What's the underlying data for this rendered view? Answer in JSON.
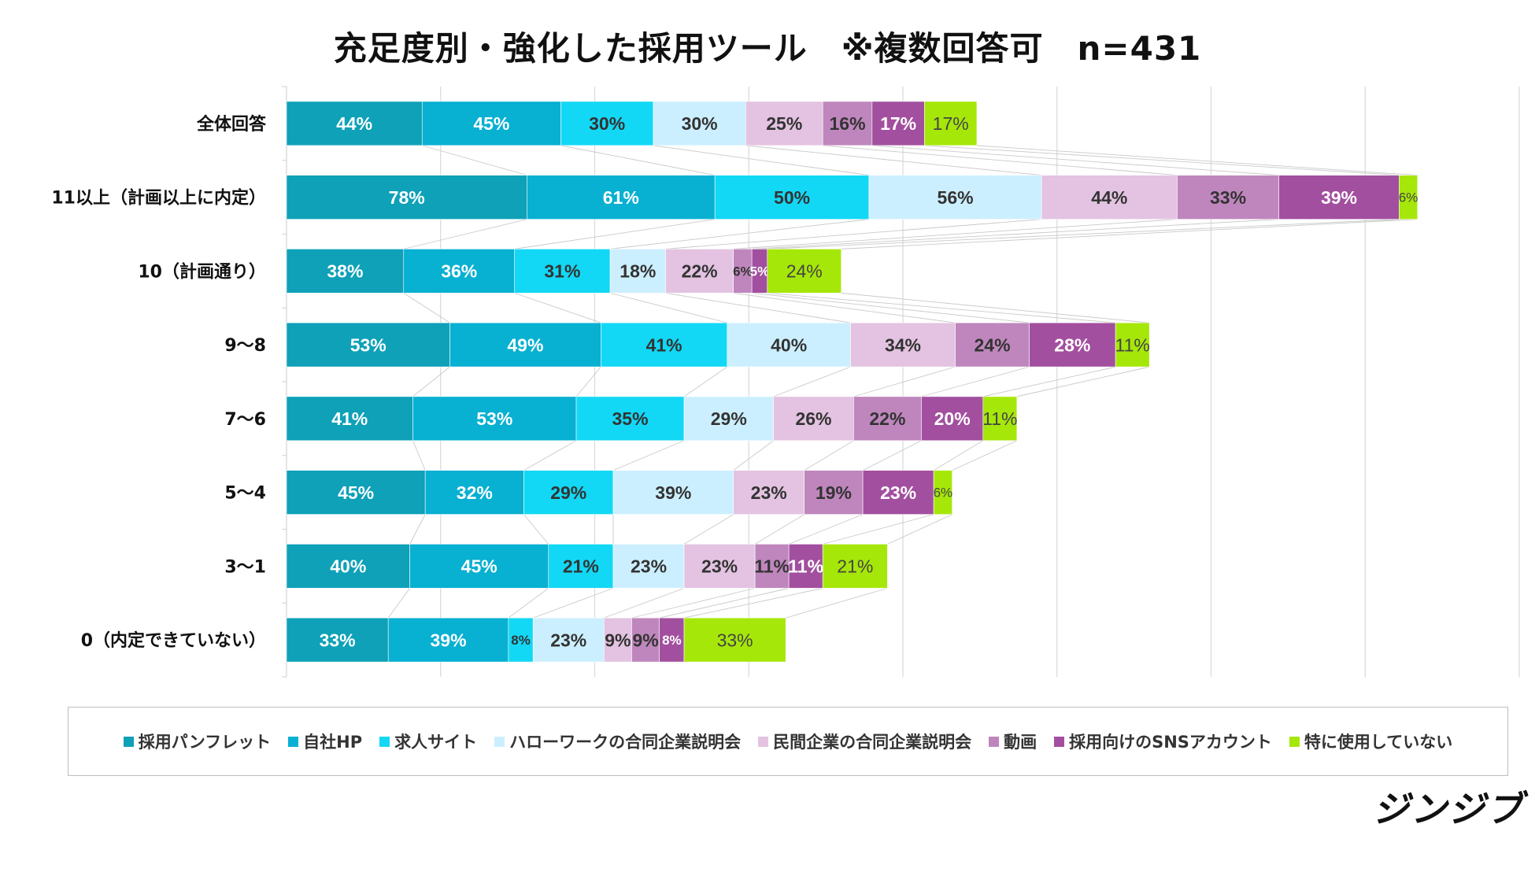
{
  "title": "充足度別・強化した採用ツール　※複数回答可　n=431",
  "brand": "ジンジブ",
  "chart_data": {
    "type": "bar",
    "orientation": "horizontal",
    "stacked": true,
    "title": "充足度別・強化した採用ツール　※複数回答可　n=431",
    "categories": [
      "全体回答",
      "11以上（計画以上に内定）",
      "10（計画通り）",
      "9～8",
      "7～6",
      "5～4",
      "3～1",
      "0（内定できていない）"
    ],
    "series": [
      {
        "name": "採用パンフレット",
        "color": "#0ea1b8",
        "label_color": "#ffffff",
        "values": [
          44,
          78,
          38,
          53,
          41,
          45,
          40,
          33
        ]
      },
      {
        "name": "自社HP",
        "color": "#08b0d2",
        "label_color": "#ffffff",
        "values": [
          45,
          61,
          36,
          49,
          53,
          32,
          45,
          39
        ]
      },
      {
        "name": "求人サイト",
        "color": "#12d8f5",
        "label_color": "#333333",
        "values": [
          30,
          50,
          31,
          41,
          35,
          29,
          21,
          8
        ]
      },
      {
        "name": "ハローワークの合同企業説明会",
        "color": "#ccefff",
        "label_color": "#333333",
        "values": [
          30,
          56,
          18,
          40,
          29,
          39,
          23,
          23
        ]
      },
      {
        "name": "民間企業の合同企業説明会",
        "color": "#e3c3e1",
        "label_color": "#333333",
        "values": [
          25,
          44,
          22,
          34,
          26,
          23,
          23,
          9
        ]
      },
      {
        "name": "動画",
        "color": "#bf86bd",
        "label_color": "#333333",
        "values": [
          16,
          33,
          6,
          24,
          22,
          19,
          11,
          9
        ]
      },
      {
        "name": "採用向けのSNSアカウント",
        "color": "#a24f9f",
        "label_color": "#ffffff",
        "values": [
          17,
          39,
          5,
          28,
          20,
          23,
          11,
          8
        ]
      },
      {
        "name": "特に使用していない",
        "color": "#a6e70a",
        "label_color": "#444444",
        "values": [
          17,
          6,
          24,
          11,
          11,
          6,
          21,
          33
        ]
      }
    ],
    "value_suffix": "%",
    "xlim": [
      0,
      400
    ],
    "x_grid_step": 50,
    "grid": true,
    "legend_position": "bottom"
  }
}
